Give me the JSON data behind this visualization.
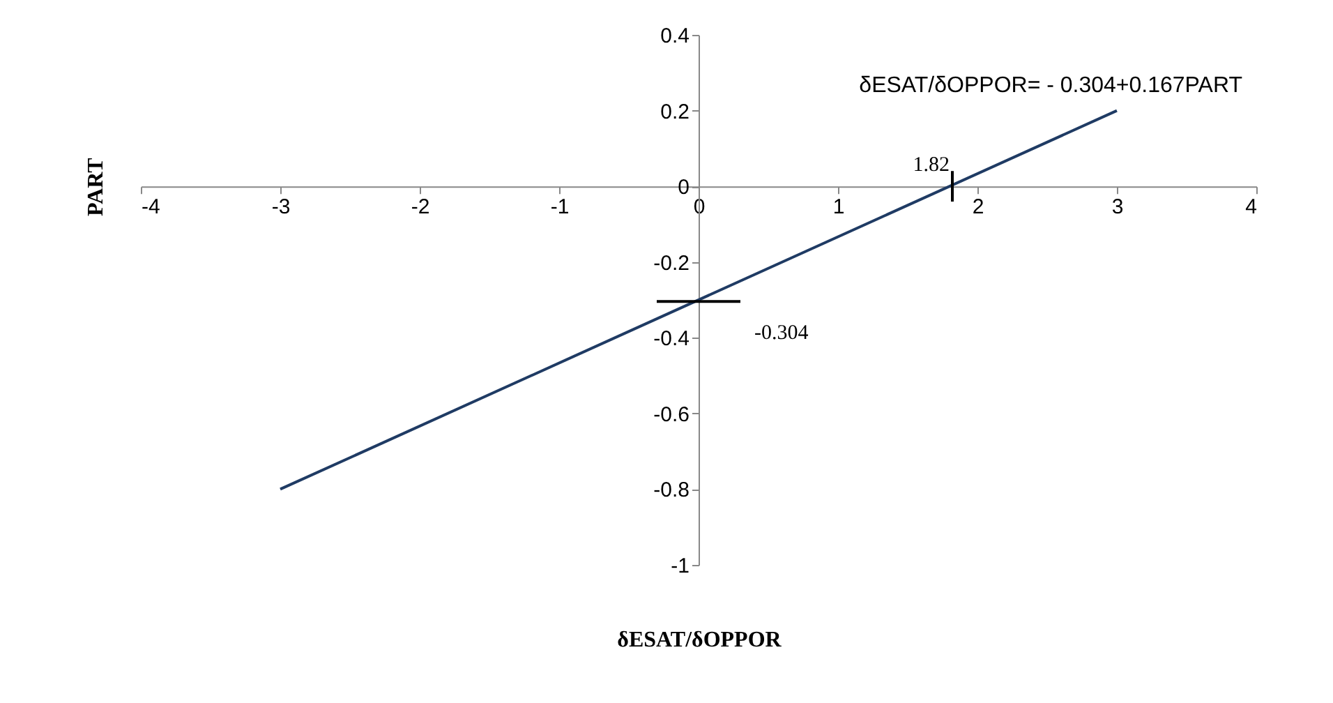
{
  "chart_data": {
    "type": "line",
    "xlabel": "δESAT/δOPPOR",
    "ylabel": "PART",
    "x": [
      -3,
      3
    ],
    "series": [
      {
        "color": "#1f3b64",
        "values": [
          -0.8,
          0.2
        ]
      }
    ],
    "xlim": [
      -4,
      4
    ],
    "xticks": [
      -4,
      -3,
      -2,
      -1,
      0,
      1,
      2,
      3,
      4
    ],
    "ylim": [
      -1,
      0.4
    ],
    "yticks": [
      -1,
      -0.8,
      -0.6,
      -0.4,
      -0.2,
      0,
      0.2,
      0.4
    ],
    "grid": false,
    "legend": false,
    "marker": "none",
    "line_style": "solid",
    "annotations": [
      "δESAT/δOPPOR= - 0.304+0.167PART",
      {
        "text": "1.82",
        "x": 1.82,
        "y": 0
      },
      {
        "text": "-0.304",
        "x": 0,
        "y": -0.304
      }
    ]
  }
}
